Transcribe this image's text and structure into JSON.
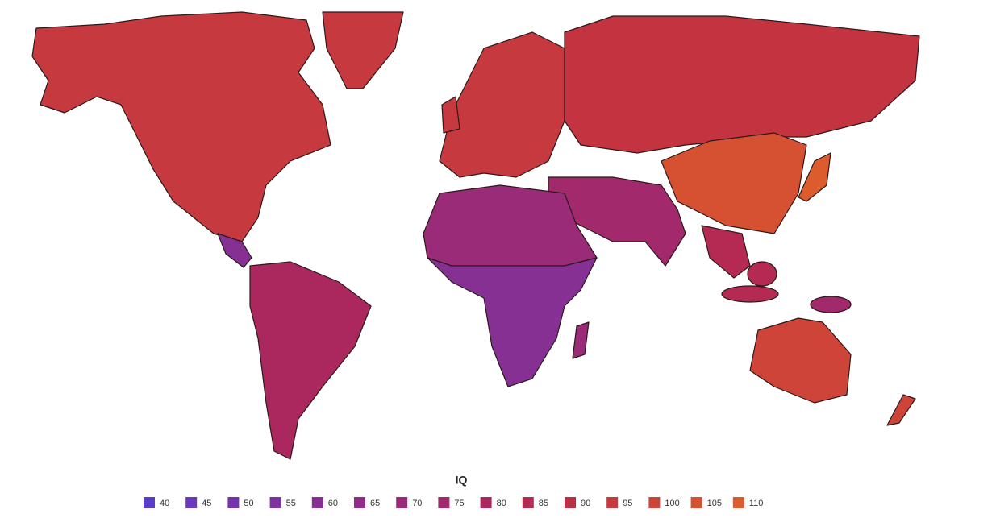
{
  "legend": {
    "title": "IQ",
    "items": [
      {
        "value": 40,
        "color": "#5c3dc6"
      },
      {
        "value": 45,
        "color": "#6a3abb"
      },
      {
        "value": 50,
        "color": "#7435ac"
      },
      {
        "value": 55,
        "color": "#7d33a0"
      },
      {
        "value": 60,
        "color": "#873094"
      },
      {
        "value": 65,
        "color": "#902d86"
      },
      {
        "value": 70,
        "color": "#992b78"
      },
      {
        "value": 75,
        "color": "#a2296b"
      },
      {
        "value": 80,
        "color": "#ab285e"
      },
      {
        "value": 85,
        "color": "#b42a52"
      },
      {
        "value": 90,
        "color": "#bd2f47"
      },
      {
        "value": 95,
        "color": "#c6393f"
      },
      {
        "value": 100,
        "color": "#cf4438"
      },
      {
        "value": 105,
        "color": "#d65032"
      },
      {
        "value": 110,
        "color": "#dc5c2e"
      }
    ]
  }
}
